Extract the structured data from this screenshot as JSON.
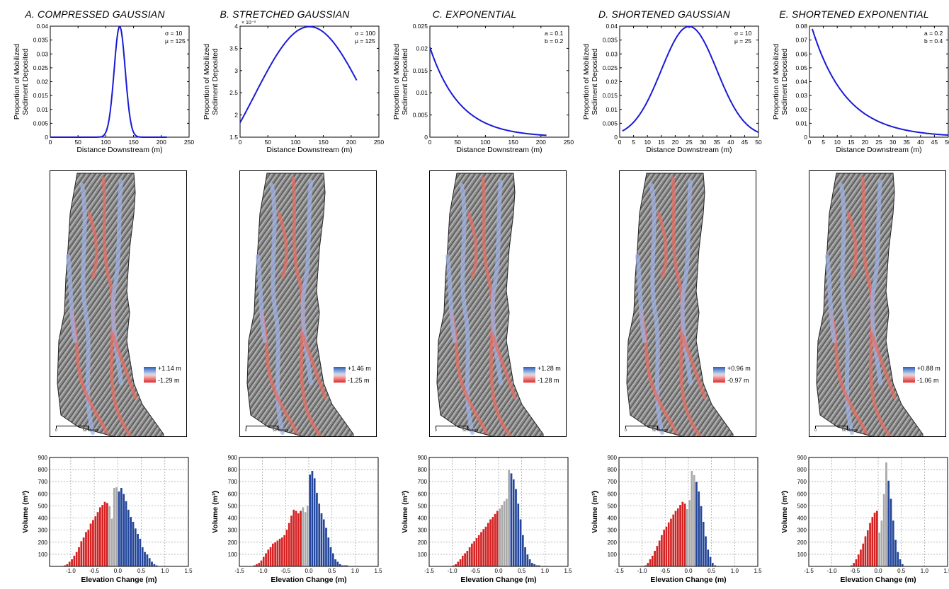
{
  "chart_data": [
    {
      "panel": "A",
      "title": "A. COMPRESSED GAUSSIAN",
      "curve": {
        "type": "line",
        "kind": "gaussian",
        "params": {
          "sigma": 10,
          "mu": 125
        },
        "params_text": [
          "σ = 10",
          "μ = 125"
        ],
        "x_range": [
          0,
          210
        ],
        "xlabel": "Distance Downstream (m)",
        "ylabel": [
          "Proportion of Mobilized",
          "Sediment Deposited"
        ],
        "xlim": [
          0,
          250
        ],
        "ylim": [
          0,
          0.04
        ],
        "xticks": [
          "0",
          "50",
          "100",
          "150",
          "200",
          "250"
        ],
        "yticks": [
          "0",
          "0.005",
          "0.01",
          "0.015",
          "0.02",
          "0.025",
          "0.03",
          "0.035",
          "0.04"
        ],
        "exponent_label": ""
      },
      "map": {
        "legend_max": "+1.14 m",
        "legend_min": "-1.29 m",
        "scale_zero": "0",
        "scale_label": "50 Meters"
      },
      "histogram": {
        "type": "bar",
        "xlabel": "Elevation Change (m)",
        "ylabel": "Volume  (m³)",
        "xlim": [
          -1.45,
          1.5
        ],
        "ylim": [
          0,
          900
        ],
        "xticks": [
          "-1.0",
          "-0.5",
          "0.0",
          "0.5",
          "1.0",
          "1.5"
        ],
        "yticks": [
          "100",
          "200",
          "300",
          "400",
          "500",
          "600",
          "700",
          "800",
          "900"
        ],
        "bin_start": -1.15,
        "bin_width": 0.05,
        "values": [
          10,
          20,
          40,
          60,
          90,
          120,
          160,
          210,
          240,
          285,
          305,
          355,
          385,
          415,
          450,
          490,
          510,
          535,
          525,
          500,
          395,
          650,
          655,
          620,
          650,
          600,
          540,
          470,
          410,
          370,
          315,
          270,
          230,
          160,
          120,
          100,
          70,
          40,
          20,
          10
        ],
        "colors": [
          "red",
          "red",
          "red",
          "red",
          "red",
          "red",
          "red",
          "red",
          "red",
          "red",
          "red",
          "red",
          "red",
          "red",
          "red",
          "red",
          "red",
          "red",
          "red",
          "gray",
          "gray",
          "gray",
          "gray",
          "blue",
          "blue",
          "blue",
          "blue",
          "blue",
          "blue",
          "blue",
          "blue",
          "blue",
          "blue",
          "blue",
          "blue",
          "blue",
          "blue",
          "blue",
          "blue",
          "blue"
        ]
      }
    },
    {
      "panel": "B",
      "title": "B. STRETCHED GAUSSIAN",
      "curve": {
        "type": "line",
        "kind": "gaussian",
        "params": {
          "sigma": 100,
          "mu": 125
        },
        "params_text": [
          "σ = 100",
          "μ = 125"
        ],
        "x_range": [
          0,
          210
        ],
        "xlabel": "Distance Downstream (m)",
        "ylabel": [
          "Proportion of Mobilized",
          "Sediment Deposited"
        ],
        "xlim": [
          0,
          250
        ],
        "ylim": [
          0.0015,
          0.004
        ],
        "xticks": [
          "0",
          "50",
          "100",
          "150",
          "200",
          "250"
        ],
        "yticks": [
          "1.5",
          "2",
          "2.5",
          "3",
          "3.5",
          "4"
        ],
        "exponent_label": "× 10⁻³"
      },
      "map": {
        "legend_max": "+1.46 m",
        "legend_min": "-1.25 m",
        "scale_zero": "0",
        "scale_label": "50 Meters"
      },
      "histogram": {
        "type": "bar",
        "xlabel": "Elevation Change (m)",
        "ylabel": "Volume  (m³)",
        "xlim": [
          -1.5,
          1.5
        ],
        "ylim": [
          0,
          900
        ],
        "xticks": [
          "-1.5",
          "-1.0",
          "-0.5",
          "0.0",
          "0.5",
          "1.0",
          "1.5"
        ],
        "yticks": [
          "100",
          "200",
          "300",
          "400",
          "500",
          "600",
          "700",
          "800",
          "900"
        ],
        "bin_start": -1.2,
        "bin_width": 0.05,
        "values": [
          10,
          20,
          30,
          50,
          80,
          110,
          140,
          160,
          190,
          200,
          215,
          230,
          240,
          260,
          305,
          360,
          420,
          470,
          460,
          440,
          460,
          490,
          450,
          505,
          760,
          790,
          730,
          610,
          520,
          440,
          390,
          320,
          240,
          160,
          110,
          60,
          40,
          20,
          10,
          10,
          10,
          5,
          5,
          5
        ],
        "colors": [
          "red",
          "red",
          "red",
          "red",
          "red",
          "red",
          "red",
          "red",
          "red",
          "red",
          "red",
          "red",
          "red",
          "red",
          "red",
          "red",
          "red",
          "red",
          "red",
          "red",
          "red",
          "gray",
          "gray",
          "gray",
          "blue",
          "blue",
          "blue",
          "blue",
          "blue",
          "blue",
          "blue",
          "blue",
          "blue",
          "blue",
          "blue",
          "blue",
          "blue",
          "blue",
          "blue",
          "blue",
          "blue",
          "blue",
          "blue",
          "blue"
        ]
      }
    },
    {
      "panel": "C",
      "title": "C. EXPONENTIAL",
      "curve": {
        "type": "line",
        "kind": "exponential",
        "params": {
          "a": 0.1,
          "b": 0.2
        },
        "params_text": [
          "a = 0.1",
          "b = 0.2"
        ],
        "x_range": [
          0,
          210
        ],
        "xlabel": "Distance Downstream (m)",
        "ylabel": [
          "Proportion of Mobilized",
          "Sediment Deposited"
        ],
        "xlim": [
          0,
          250
        ],
        "ylim": [
          0,
          0.025
        ],
        "xticks": [
          "0",
          "50",
          "100",
          "150",
          "200",
          "250"
        ],
        "yticks": [
          "0",
          "0.005",
          "0.01",
          "0.015",
          "0.02",
          "0.025"
        ],
        "exponent_label": ""
      },
      "map": {
        "legend_max": "+1.28 m",
        "legend_min": "-1.28 m",
        "scale_zero": "0",
        "scale_label": "50 Meters"
      },
      "histogram": {
        "type": "bar",
        "xlabel": "Elevation Change (m)",
        "ylabel": "Volume  (m³)",
        "xlim": [
          -1.5,
          1.5
        ],
        "ylim": [
          0,
          900
        ],
        "xticks": [
          "-1.5",
          "-1.0",
          "-0.5",
          "0.0",
          "0.5",
          "1.0",
          "1.5"
        ],
        "yticks": [
          "100",
          "200",
          "300",
          "400",
          "500",
          "600",
          "700",
          "800",
          "900"
        ],
        "bin_start": -1.0,
        "bin_width": 0.05,
        "values": [
          10,
          20,
          40,
          60,
          90,
          110,
          130,
          160,
          190,
          210,
          235,
          260,
          285,
          310,
          330,
          360,
          390,
          410,
          435,
          460,
          480,
          510,
          540,
          560,
          800,
          770,
          720,
          640,
          520,
          390,
          260,
          160,
          100,
          60,
          30,
          20,
          10,
          10,
          5,
          5,
          5
        ],
        "colors": [
          "red",
          "red",
          "red",
          "red",
          "red",
          "red",
          "red",
          "red",
          "red",
          "red",
          "red",
          "red",
          "red",
          "red",
          "red",
          "red",
          "red",
          "red",
          "red",
          "red",
          "gray",
          "gray",
          "gray",
          "gray",
          "gray",
          "blue",
          "blue",
          "blue",
          "blue",
          "blue",
          "blue",
          "blue",
          "blue",
          "blue",
          "blue",
          "blue",
          "blue",
          "blue",
          "blue",
          "blue",
          "blue"
        ]
      }
    },
    {
      "panel": "D",
      "title": "D. SHORTENED GAUSSIAN",
      "curve": {
        "type": "line",
        "kind": "gaussian",
        "params": {
          "sigma": 10,
          "mu": 25
        },
        "params_text": [
          "σ = 10",
          "μ = 25"
        ],
        "x_range": [
          1,
          50
        ],
        "xlabel": "Distance Downstream (m)",
        "ylabel": [
          "Proportion of Mobilized",
          "Sediment Deposited"
        ],
        "xlim": [
          0,
          50
        ],
        "ylim": [
          0,
          0.04
        ],
        "xticks": [
          "0",
          "5",
          "10",
          "15",
          "20",
          "25",
          "30",
          "35",
          "40",
          "45",
          "50"
        ],
        "yticks": [
          "0",
          "0.005",
          "0.01",
          "0.015",
          "0.02",
          "0.025",
          "0.03",
          "0.035",
          "0.04"
        ],
        "exponent_label": ""
      },
      "map": {
        "legend_max": "+0.96 m",
        "legend_min": "-0.97 m",
        "scale_zero": "0",
        "scale_label": "50 Meters"
      },
      "histogram": {
        "type": "bar",
        "xlabel": "Elevation Change (m)",
        "ylabel": "Volume  (m³)",
        "xlim": [
          -1.5,
          1.5
        ],
        "ylim": [
          0,
          900
        ],
        "xticks": [
          "-1.5",
          "-1.0",
          "-0.5",
          "0.0",
          "0.5",
          "1.0",
          "1.5"
        ],
        "yticks": [
          "100",
          "200",
          "300",
          "400",
          "500",
          "600",
          "700",
          "800",
          "900"
        ],
        "bin_start": -0.95,
        "bin_width": 0.05,
        "values": [
          10,
          30,
          60,
          90,
          130,
          170,
          215,
          260,
          305,
          330,
          365,
          395,
          430,
          460,
          480,
          510,
          535,
          520,
          475,
          550,
          790,
          755,
          700,
          620,
          500,
          370,
          250,
          140,
          80,
          30,
          10
        ],
        "colors": [
          "red",
          "red",
          "red",
          "red",
          "red",
          "red",
          "red",
          "red",
          "red",
          "red",
          "red",
          "red",
          "red",
          "red",
          "red",
          "red",
          "red",
          "red",
          "gray",
          "gray",
          "gray",
          "gray",
          "blue",
          "blue",
          "blue",
          "blue",
          "blue",
          "blue",
          "blue",
          "blue",
          "blue"
        ]
      }
    },
    {
      "panel": "E",
      "title": "E. SHORTENED EXPONENTIAL",
      "curve": {
        "type": "line",
        "kind": "exponential",
        "params": {
          "a": 0.2,
          "b": 0.4
        },
        "params_text": [
          "a = 0.2",
          "b = 0.4"
        ],
        "x_range": [
          1,
          50
        ],
        "xlabel": "Distance Downstream (m)",
        "ylabel": [
          "Proportion of Mobilized",
          "Sediment Deposited"
        ],
        "xlim": [
          0,
          50
        ],
        "ylim": [
          0,
          0.08
        ],
        "xticks": [
          "0",
          "5",
          "10",
          "15",
          "20",
          "25",
          "30",
          "35",
          "40",
          "45",
          "50"
        ],
        "yticks": [
          "0",
          "0.01",
          "0.02",
          "0.03",
          "0.04",
          "0.05",
          "0.06",
          "0.07",
          "0.08"
        ],
        "exponent_label": ""
      },
      "map": {
        "legend_max": "+0.88 m",
        "legend_min": "-1.06 m",
        "scale_zero": "0",
        "scale_label": "50 Meters"
      },
      "histogram": {
        "type": "bar",
        "xlabel": "Elevation Change (m)",
        "ylabel": "Volume  (m³)",
        "xlim": [
          -1.5,
          1.5
        ],
        "ylim": [
          0,
          900
        ],
        "xticks": [
          "-1.5",
          "-1.0",
          "-0.5",
          "0.0",
          "0.5",
          "1.0",
          "1.5"
        ],
        "yticks": [
          "100",
          "200",
          "300",
          "400",
          "500",
          "600",
          "700",
          "800",
          "900"
        ],
        "bin_start": -0.6,
        "bin_width": 0.05,
        "values": [
          10,
          30,
          60,
          100,
          140,
          190,
          250,
          300,
          360,
          410,
          445,
          460,
          280,
          380,
          600,
          860,
          710,
          560,
          380,
          220,
          120,
          60,
          20
        ],
        "colors": [
          "red",
          "red",
          "red",
          "red",
          "red",
          "red",
          "red",
          "red",
          "red",
          "red",
          "red",
          "red",
          "gray",
          "gray",
          "gray",
          "gray",
          "blue",
          "blue",
          "blue",
          "blue",
          "blue",
          "blue",
          "blue"
        ]
      }
    }
  ],
  "colors": {
    "curve": "#1a1ad6",
    "deposition_blue": "#24479c",
    "erosion_red": "#d42222",
    "gray_bar": "#a9a9a9",
    "grid": "#9a9a9a"
  }
}
